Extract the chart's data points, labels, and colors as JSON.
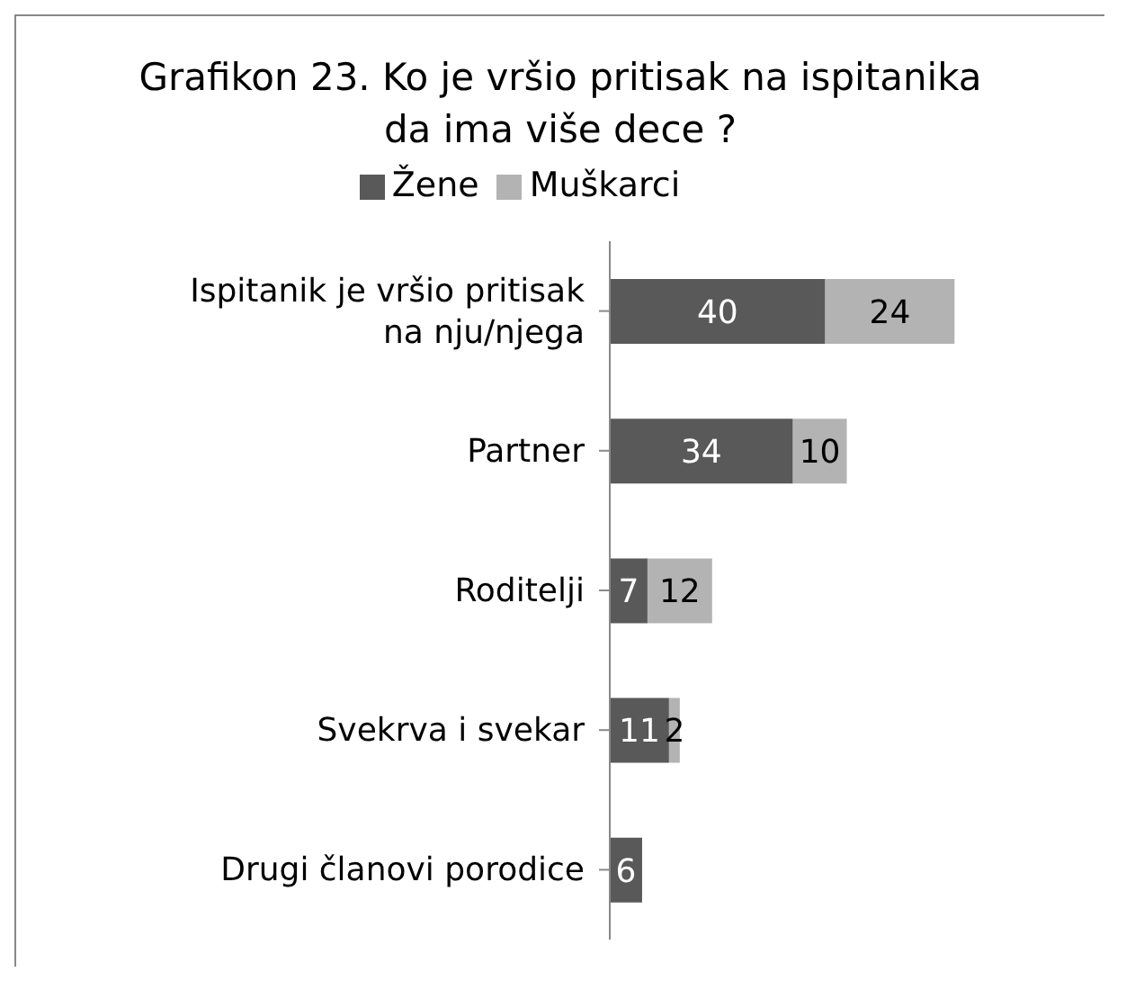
{
  "chart_data": {
    "type": "bar",
    "orientation": "horizontal",
    "stacked": true,
    "title": "Grafikon 23. Ko je vršio pritisak na ispitanika da ima više dece ?",
    "categories": [
      "Ispitanik je vršio pritisak na nju/njega",
      "Partner",
      "Roditelji",
      "Svekrva i svekar",
      "Drugi članovi porodice"
    ],
    "series": [
      {
        "name": "Žene",
        "color": "#595959",
        "values": [
          40,
          34,
          7,
          11,
          6
        ]
      },
      {
        "name": "Muškarci",
        "color": "#b3b3b3",
        "values": [
          24,
          10,
          12,
          2,
          null
        ]
      }
    ],
    "data_labels": true,
    "legend": "top",
    "tick_labels": "y",
    "grid": false
  }
}
